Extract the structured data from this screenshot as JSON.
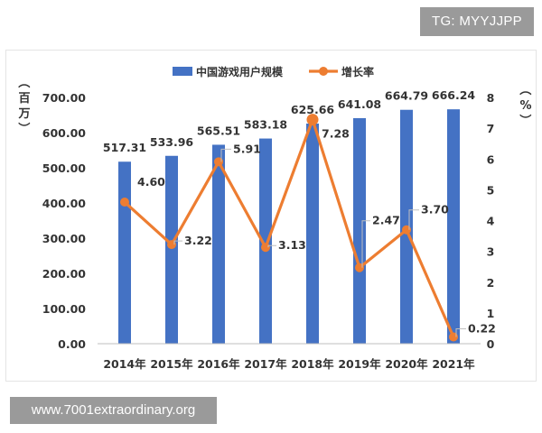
{
  "watermark": {
    "tag": "TG: MYYJJPP",
    "url": "www.7001extraordinary.org"
  },
  "chart_data": {
    "type": "bar",
    "categories": [
      "2014年",
      "2015年",
      "2016年",
      "2017年",
      "2018年",
      "2019年",
      "2020年",
      "2021年"
    ],
    "series": [
      {
        "name": "中国游戏用户规模",
        "type": "bar",
        "axis": "left",
        "color": "#4472c4",
        "values": [
          517.31,
          533.96,
          565.51,
          583.18,
          625.66,
          641.08,
          664.79,
          666.24
        ],
        "labels": [
          "517.31",
          "533.96",
          "565.51",
          "583.18",
          "625.66",
          "641.08",
          "664.79",
          "666.24"
        ]
      },
      {
        "name": "增长率",
        "type": "line",
        "axis": "right",
        "color": "#ed7d31",
        "values": [
          4.6,
          3.22,
          5.91,
          3.13,
          7.28,
          2.47,
          3.7,
          0.22
        ],
        "labels": [
          "4.60",
          "3.22",
          "5.91",
          "3.13",
          "7.28",
          "2.47",
          "3.70",
          "0.22"
        ]
      }
    ],
    "yleft": {
      "label": "（百万）",
      "ticks": [
        "0.00",
        "100.00",
        "200.00",
        "300.00",
        "400.00",
        "500.00",
        "600.00",
        "700.00"
      ],
      "ylim": [
        0,
        700
      ]
    },
    "yright": {
      "label": "（%）",
      "ticks": [
        "0",
        "1",
        "2",
        "3",
        "4",
        "5",
        "6",
        "7",
        "8"
      ],
      "ylim": [
        0,
        8
      ]
    },
    "legend": {
      "position": "top"
    },
    "grid": false
  }
}
